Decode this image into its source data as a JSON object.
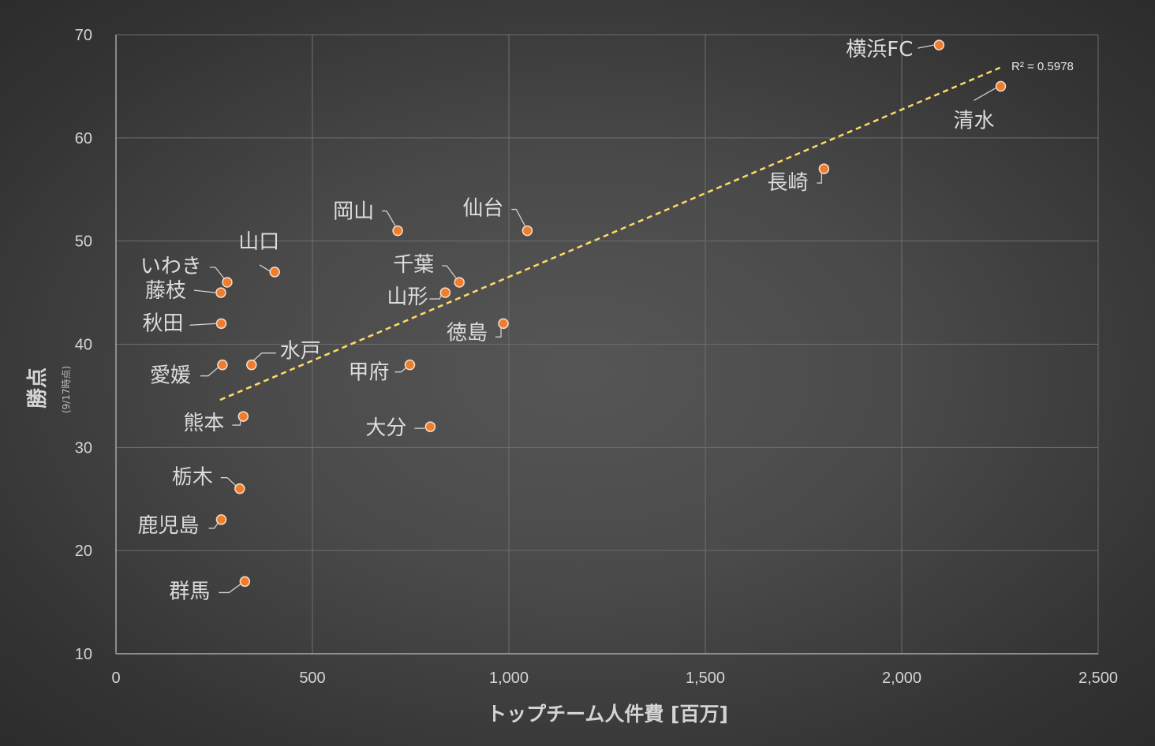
{
  "chart_data": {
    "type": "scatter",
    "title": "",
    "xlabel": "トップチーム人件費 [百万]",
    "ylabel": "勝点",
    "ylabel_sub": "(9/17時点)",
    "xlim": [
      0,
      2500
    ],
    "ylim": [
      10,
      70
    ],
    "xticks": [
      0,
      500,
      1000,
      1500,
      2000,
      2500
    ],
    "xtick_labels": [
      "0",
      "500",
      "1,000",
      "1,500",
      "2,000",
      "2,500"
    ],
    "yticks": [
      10,
      20,
      30,
      40,
      50,
      60,
      70
    ],
    "ytick_labels": [
      "10",
      "20",
      "30",
      "40",
      "50",
      "60",
      "70"
    ],
    "grid": true,
    "legend": false,
    "point_color": "#ee7d2e",
    "trendline_color": "#ffd966",
    "trendline": {
      "type": "linear",
      "x_range": [
        265,
        2250
      ],
      "y_start": 34.6,
      "y_end": 66.8,
      "r2_label": "R² = 0.5978"
    },
    "points": [
      {
        "name": "横浜FC",
        "x": 2095,
        "y": 69
      },
      {
        "name": "清水",
        "x": 2252,
        "y": 65
      },
      {
        "name": "長崎",
        "x": 1802,
        "y": 57
      },
      {
        "name": "仙台",
        "x": 1047,
        "y": 51
      },
      {
        "name": "岡山",
        "x": 717,
        "y": 51
      },
      {
        "name": "千葉",
        "x": 874,
        "y": 46
      },
      {
        "name": "山形",
        "x": 838,
        "y": 45
      },
      {
        "name": "徳島",
        "x": 986,
        "y": 42
      },
      {
        "name": "甲府",
        "x": 748,
        "y": 38
      },
      {
        "name": "大分",
        "x": 800,
        "y": 32
      },
      {
        "name": "山口",
        "x": 404,
        "y": 47
      },
      {
        "name": "いわき",
        "x": 283,
        "y": 46
      },
      {
        "name": "藤枝",
        "x": 267,
        "y": 45
      },
      {
        "name": "秋田",
        "x": 268,
        "y": 42
      },
      {
        "name": "水戸",
        "x": 345,
        "y": 38
      },
      {
        "name": "愛媛",
        "x": 271,
        "y": 38
      },
      {
        "name": "熊本",
        "x": 324,
        "y": 33
      },
      {
        "name": "栃木",
        "x": 315,
        "y": 26
      },
      {
        "name": "鹿児島",
        "x": 268,
        "y": 23
      },
      {
        "name": "群馬",
        "x": 328,
        "y": 17
      }
    ]
  }
}
